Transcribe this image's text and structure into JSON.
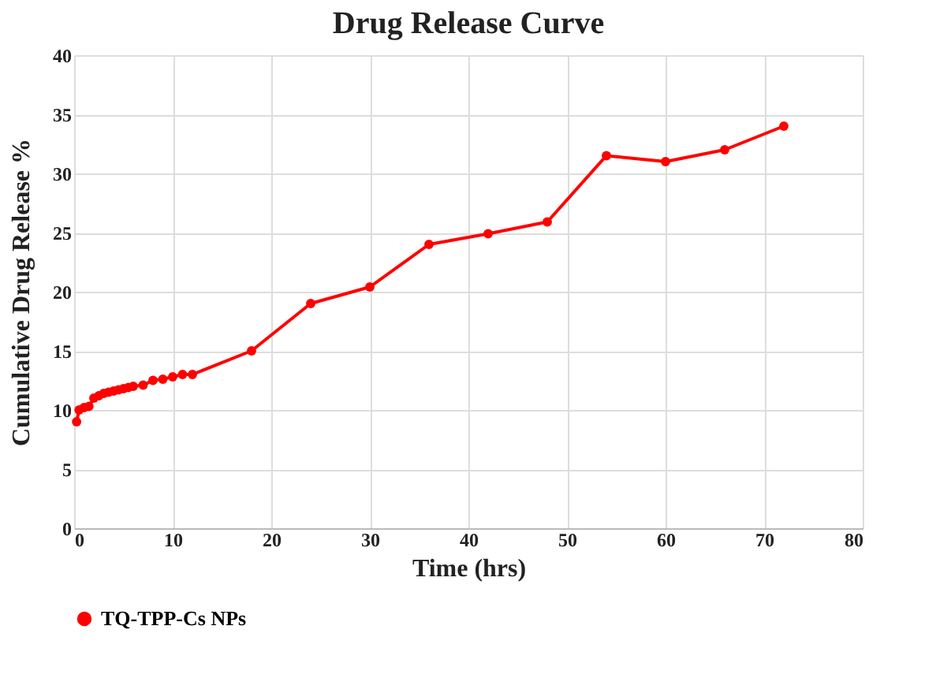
{
  "chart_data": {
    "type": "line",
    "title": "Drug Release Curve",
    "xlabel": "Time (hrs)",
    "ylabel": "Cumulative Drug Release %",
    "x": [
      0.25,
      0.5,
      1,
      1.5,
      2,
      2.5,
      3,
      3.5,
      4,
      4.5,
      5,
      5.5,
      6,
      7,
      8,
      9,
      10,
      11,
      12,
      18,
      24,
      30,
      36,
      42,
      48,
      54,
      60,
      66,
      72
    ],
    "series": [
      {
        "name": "TQ-TPP-Cs NPs",
        "color": "#ff0000",
        "values": [
          9,
          10,
          10.2,
          10.3,
          11,
          11.2,
          11.4,
          11.5,
          11.6,
          11.7,
          11.8,
          11.9,
          12,
          12.1,
          12.5,
          12.6,
          12.8,
          13,
          13,
          15,
          19,
          20.4,
          24,
          24.9,
          25.9,
          31.5,
          31,
          32,
          34
        ]
      }
    ],
    "xlim": [
      0,
      80
    ],
    "xticks": [
      0,
      10,
      20,
      30,
      40,
      50,
      60,
      70,
      80
    ],
    "ylim": [
      0,
      40
    ],
    "yticks": [
      0,
      5,
      10,
      15,
      20,
      25,
      30,
      35,
      40
    ],
    "grid": true,
    "legend": "bottom",
    "marker": "circle",
    "line_style": "solid"
  }
}
